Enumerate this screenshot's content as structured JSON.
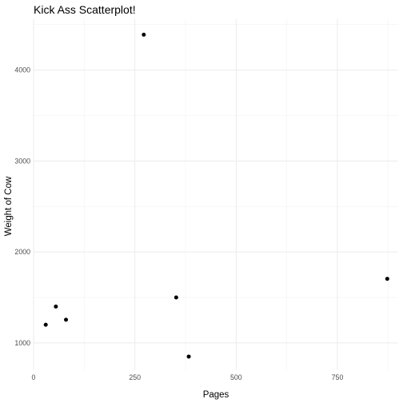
{
  "chart_data": {
    "type": "scatter",
    "title": "Kick Ass Scatterplot!",
    "xlabel": "Pages",
    "ylabel": "Weight of Cow",
    "xlim": [
      0,
      900
    ],
    "ylim": [
      700,
      4560
    ],
    "x_ticks": [
      0,
      250,
      500,
      750
    ],
    "y_ticks": [
      1000,
      2000,
      3000,
      4000
    ],
    "x_minor": [
      125,
      375,
      625,
      875
    ],
    "y_minor": [
      1500,
      2500,
      3500,
      4500
    ],
    "grid": true,
    "point_color": "#000000",
    "series": [
      {
        "points": [
          {
            "x": 30,
            "y": 1200
          },
          {
            "x": 55,
            "y": 1400
          },
          {
            "x": 80,
            "y": 1255
          },
          {
            "x": 272,
            "y": 4390
          },
          {
            "x": 352,
            "y": 1500
          },
          {
            "x": 383,
            "y": 850
          },
          {
            "x": 873,
            "y": 1705
          }
        ]
      }
    ]
  }
}
